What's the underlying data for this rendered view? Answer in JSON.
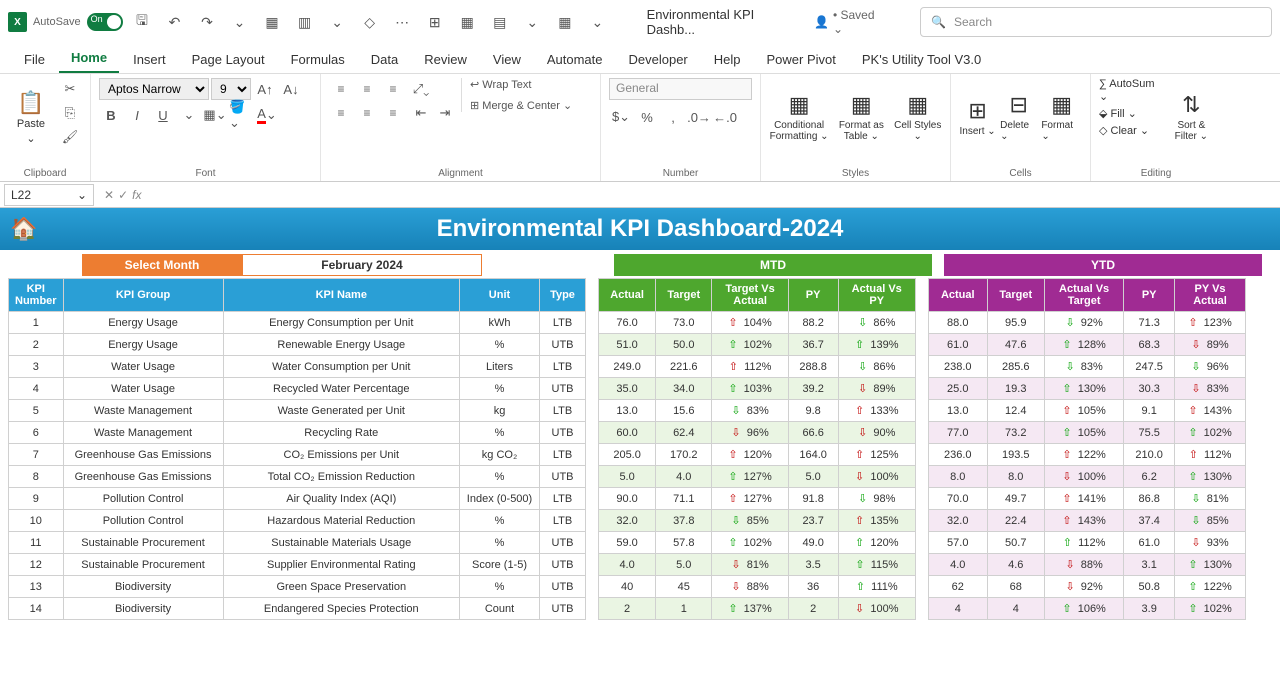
{
  "titlebar": {
    "autosave_label": "AutoSave",
    "doc_title": "Environmental KPI Dashb...",
    "saved_label": "• Saved ⌄",
    "search_placeholder": "Search"
  },
  "tabs": [
    "File",
    "Home",
    "Insert",
    "Page Layout",
    "Formulas",
    "Data",
    "Review",
    "View",
    "Automate",
    "Developer",
    "Help",
    "Power Pivot",
    "PK's Utility Tool V3.0"
  ],
  "active_tab": "Home",
  "ribbon": {
    "clipboard": "Clipboard",
    "paste": "Paste",
    "font_group": "Font",
    "font_name": "Aptos Narrow",
    "font_size": "9",
    "alignment": "Alignment",
    "wrap": "Wrap Text",
    "merge": "Merge & Center ⌄",
    "number": "Number",
    "number_format": "General",
    "styles": "Styles",
    "cond_fmt": "Conditional Formatting ⌄",
    "fmt_table": "Format as Table ⌄",
    "cell_styles": "Cell Styles ⌄",
    "cells": "Cells",
    "insert": "Insert ⌄",
    "delete": "Delete ⌄",
    "format_c": "Format ⌄",
    "editing": "Editing",
    "autosum": "∑ AutoSum ⌄",
    "fill": "⬙ Fill ⌄",
    "clear": "◇ Clear ⌄",
    "sort": "Sort & Filter ⌄"
  },
  "cell_ref": "L22",
  "dashboard_title": "Environmental KPI Dashboard-2024",
  "select_month_label": "Select Month",
  "selected_month": "February 2024",
  "mtd_label": "MTD",
  "ytd_label": "YTD",
  "main_headers": [
    "KPI Number",
    "KPI Group",
    "KPI Name",
    "Unit",
    "Type"
  ],
  "mtd_headers": [
    "Actual",
    "Target",
    "Target Vs Actual",
    "PY",
    "Actual Vs PY"
  ],
  "ytd_headers": [
    "Actual",
    "Target",
    "Actual Vs Target",
    "PY",
    "PY Vs Actual"
  ],
  "rows": [
    {
      "num": "1",
      "group": "Energy Usage",
      "name": "Energy Consumption per Unit",
      "unit": "kWh",
      "type": "LTB",
      "mtd": {
        "actual": "76.0",
        "target": "73.0",
        "tva": "104%",
        "tva_dir": "up-r",
        "py": "88.2",
        "avpy": "86%",
        "avpy_dir": "dn-g"
      },
      "ytd": {
        "actual": "88.0",
        "target": "95.9",
        "avt": "92%",
        "avt_dir": "dn-g",
        "py": "71.3",
        "pva": "123%",
        "pva_dir": "up-r"
      }
    },
    {
      "num": "2",
      "group": "Energy Usage",
      "name": "Renewable Energy Usage",
      "unit": "%",
      "type": "UTB",
      "mtd": {
        "actual": "51.0",
        "target": "50.0",
        "tva": "102%",
        "tva_dir": "up-g",
        "py": "36.7",
        "avpy": "139%",
        "avpy_dir": "up-g"
      },
      "ytd": {
        "actual": "61.0",
        "target": "47.6",
        "avt": "128%",
        "avt_dir": "up-g",
        "py": "68.3",
        "pva": "89%",
        "pva_dir": "dn-r"
      }
    },
    {
      "num": "3",
      "group": "Water Usage",
      "name": "Water Consumption per Unit",
      "unit": "Liters",
      "type": "LTB",
      "mtd": {
        "actual": "249.0",
        "target": "221.6",
        "tva": "112%",
        "tva_dir": "up-r",
        "py": "288.8",
        "avpy": "86%",
        "avpy_dir": "dn-g"
      },
      "ytd": {
        "actual": "238.0",
        "target": "285.6",
        "avt": "83%",
        "avt_dir": "dn-g",
        "py": "247.5",
        "pva": "96%",
        "pva_dir": "dn-g"
      }
    },
    {
      "num": "4",
      "group": "Water Usage",
      "name": "Recycled Water Percentage",
      "unit": "%",
      "type": "UTB",
      "mtd": {
        "actual": "35.0",
        "target": "34.0",
        "tva": "103%",
        "tva_dir": "up-g",
        "py": "39.2",
        "avpy": "89%",
        "avpy_dir": "dn-r"
      },
      "ytd": {
        "actual": "25.0",
        "target": "19.3",
        "avt": "130%",
        "avt_dir": "up-g",
        "py": "30.3",
        "pva": "83%",
        "pva_dir": "dn-r"
      }
    },
    {
      "num": "5",
      "group": "Waste Management",
      "name": "Waste Generated per Unit",
      "unit": "kg",
      "type": "LTB",
      "mtd": {
        "actual": "13.0",
        "target": "15.6",
        "tva": "83%",
        "tva_dir": "dn-g",
        "py": "9.8",
        "avpy": "133%",
        "avpy_dir": "up-r"
      },
      "ytd": {
        "actual": "13.0",
        "target": "12.4",
        "avt": "105%",
        "avt_dir": "up-r",
        "py": "9.1",
        "pva": "143%",
        "pva_dir": "up-r"
      }
    },
    {
      "num": "6",
      "group": "Waste Management",
      "name": "Recycling Rate",
      "unit": "%",
      "type": "UTB",
      "mtd": {
        "actual": "60.0",
        "target": "62.4",
        "tva": "96%",
        "tva_dir": "dn-r",
        "py": "66.6",
        "avpy": "90%",
        "avpy_dir": "dn-r"
      },
      "ytd": {
        "actual": "77.0",
        "target": "73.2",
        "avt": "105%",
        "avt_dir": "up-g",
        "py": "75.5",
        "pva": "102%",
        "pva_dir": "up-g"
      }
    },
    {
      "num": "7",
      "group": "Greenhouse Gas Emissions",
      "name": "CO₂ Emissions per Unit",
      "unit": "kg CO₂",
      "type": "LTB",
      "mtd": {
        "actual": "205.0",
        "target": "170.2",
        "tva": "120%",
        "tva_dir": "up-r",
        "py": "164.0",
        "avpy": "125%",
        "avpy_dir": "up-r"
      },
      "ytd": {
        "actual": "236.0",
        "target": "193.5",
        "avt": "122%",
        "avt_dir": "up-r",
        "py": "210.0",
        "pva": "112%",
        "pva_dir": "up-r"
      }
    },
    {
      "num": "8",
      "group": "Greenhouse Gas Emissions",
      "name": "Total CO₂ Emission Reduction",
      "unit": "%",
      "type": "UTB",
      "mtd": {
        "actual": "5.0",
        "target": "4.0",
        "tva": "127%",
        "tva_dir": "up-g",
        "py": "5.0",
        "avpy": "100%",
        "avpy_dir": "dn-r"
      },
      "ytd": {
        "actual": "8.0",
        "target": "8.0",
        "avt": "100%",
        "avt_dir": "dn-r",
        "py": "6.2",
        "pva": "130%",
        "pva_dir": "up-g"
      }
    },
    {
      "num": "9",
      "group": "Pollution Control",
      "name": "Air Quality Index (AQI)",
      "unit": "Index (0-500)",
      "type": "LTB",
      "mtd": {
        "actual": "90.0",
        "target": "71.1",
        "tva": "127%",
        "tva_dir": "up-r",
        "py": "91.8",
        "avpy": "98%",
        "avpy_dir": "dn-g"
      },
      "ytd": {
        "actual": "70.0",
        "target": "49.7",
        "avt": "141%",
        "avt_dir": "up-r",
        "py": "86.8",
        "pva": "81%",
        "pva_dir": "dn-g"
      }
    },
    {
      "num": "10",
      "group": "Pollution Control",
      "name": "Hazardous Material Reduction",
      "unit": "%",
      "type": "LTB",
      "mtd": {
        "actual": "32.0",
        "target": "37.8",
        "tva": "85%",
        "tva_dir": "dn-g",
        "py": "23.7",
        "avpy": "135%",
        "avpy_dir": "up-r"
      },
      "ytd": {
        "actual": "32.0",
        "target": "22.4",
        "avt": "143%",
        "avt_dir": "up-r",
        "py": "37.4",
        "pva": "85%",
        "pva_dir": "dn-g"
      }
    },
    {
      "num": "11",
      "group": "Sustainable Procurement",
      "name": "Sustainable Materials Usage",
      "unit": "%",
      "type": "UTB",
      "mtd": {
        "actual": "59.0",
        "target": "57.8",
        "tva": "102%",
        "tva_dir": "up-g",
        "py": "49.0",
        "avpy": "120%",
        "avpy_dir": "up-g"
      },
      "ytd": {
        "actual": "57.0",
        "target": "50.7",
        "avt": "112%",
        "avt_dir": "up-g",
        "py": "61.0",
        "pva": "93%",
        "pva_dir": "dn-r"
      }
    },
    {
      "num": "12",
      "group": "Sustainable Procurement",
      "name": "Supplier Environmental Rating",
      "unit": "Score (1-5)",
      "type": "UTB",
      "mtd": {
        "actual": "4.0",
        "target": "5.0",
        "tva": "81%",
        "tva_dir": "dn-r",
        "py": "3.5",
        "avpy": "115%",
        "avpy_dir": "up-g"
      },
      "ytd": {
        "actual": "4.0",
        "target": "4.6",
        "avt": "88%",
        "avt_dir": "dn-r",
        "py": "3.1",
        "pva": "130%",
        "pva_dir": "up-g"
      }
    },
    {
      "num": "13",
      "group": "Biodiversity",
      "name": "Green Space Preservation",
      "unit": "%",
      "type": "UTB",
      "mtd": {
        "actual": "40",
        "target": "45",
        "tva": "88%",
        "tva_dir": "dn-r",
        "py": "36",
        "avpy": "111%",
        "avpy_dir": "up-g"
      },
      "ytd": {
        "actual": "62",
        "target": "68",
        "avt": "92%",
        "avt_dir": "dn-r",
        "py": "50.8",
        "pva": "122%",
        "pva_dir": "up-g"
      }
    },
    {
      "num": "14",
      "group": "Biodiversity",
      "name": "Endangered Species Protection",
      "unit": "Count",
      "type": "UTB",
      "mtd": {
        "actual": "2",
        "target": "1",
        "tva": "137%",
        "tva_dir": "up-g",
        "py": "2",
        "avpy": "100%",
        "avpy_dir": "dn-r"
      },
      "ytd": {
        "actual": "4",
        "target": "4",
        "avt": "106%",
        "avt_dir": "up-g",
        "py": "3.9",
        "pva": "102%",
        "pva_dir": "up-g"
      }
    }
  ],
  "colors": {
    "header_blue": "#2a9fd6",
    "orange": "#ed7d31",
    "green": "#4ea72e",
    "purple": "#a02b93"
  }
}
